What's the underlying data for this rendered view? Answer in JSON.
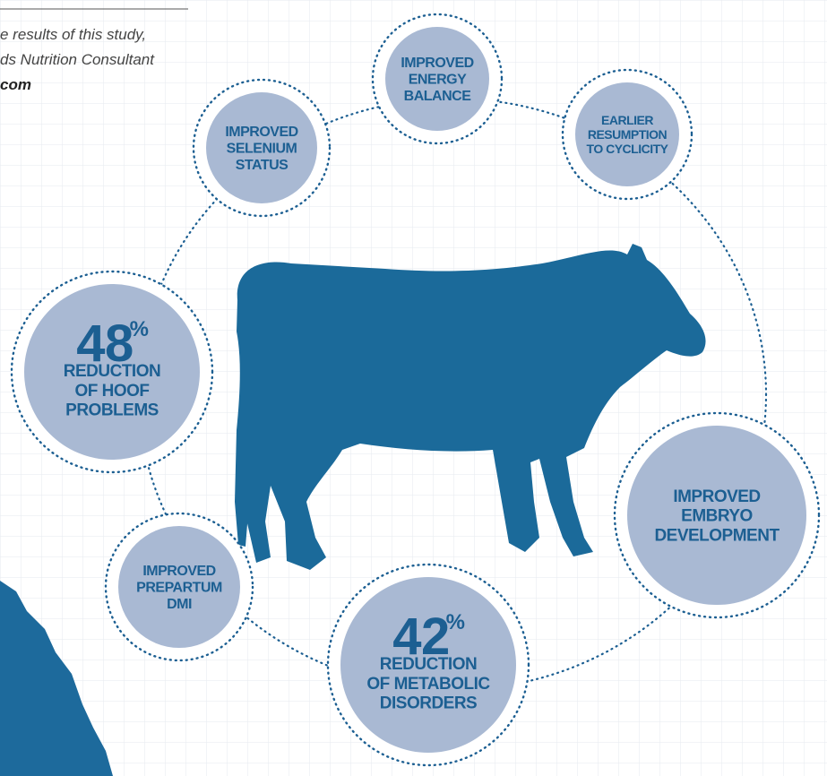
{
  "intro": {
    "lines": [
      "e results of this study,",
      "ds Nutrition Consultant",
      "com"
    ]
  },
  "nodes": [
    {
      "label": [
        "IMPROVED",
        "ENERGY",
        "BALANCE"
      ]
    },
    {
      "label": [
        "EARLIER",
        "RESUMPTION",
        "TO CYCLICITY"
      ]
    },
    {
      "label": [
        "IMPROVED",
        "SELENIUM",
        "STATUS"
      ]
    },
    {
      "value": "48",
      "unit": "%",
      "label": [
        "REDUCTION",
        "OF HOOF",
        "PROBLEMS"
      ]
    },
    {
      "label": [
        "IMPROVED",
        "EMBRYO",
        "DEVELOPMENT"
      ]
    },
    {
      "label": [
        "IMPROVED",
        "PREPARTUM",
        "DMI"
      ]
    },
    {
      "value": "42",
      "unit": "%",
      "label": [
        "REDUCTION",
        "OF METABOLIC",
        "DISORDERS"
      ]
    }
  ]
}
